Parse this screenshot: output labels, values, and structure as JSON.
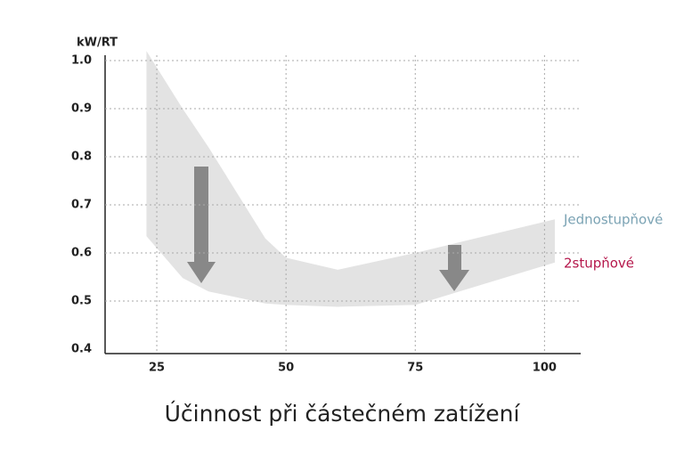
{
  "chart_data": {
    "type": "line",
    "y_label": "kW/RT",
    "x_label": "Účinnost při částečném zatížení",
    "x": [
      23,
      30,
      35,
      46,
      50,
      60,
      75,
      102
    ],
    "series": [
      {
        "name": "Jednostupňové",
        "color": "#7ba3b4",
        "values": [
          1.02,
          0.9,
          0.82,
          0.63,
          0.59,
          0.565,
          0.6,
          0.67
        ]
      },
      {
        "name": "2stupňové",
        "color": "#b5174b",
        "values": [
          0.635,
          0.548,
          0.52,
          0.495,
          0.492,
          0.488,
          0.492,
          0.58
        ]
      }
    ],
    "xlim": [
      15,
      107
    ],
    "ylim": [
      0.4,
      1.05
    ],
    "xticks": [
      25,
      50,
      75,
      100
    ],
    "yticks": [
      0.4,
      0.5,
      0.6,
      0.7,
      0.8,
      0.9,
      {
        "value": 1,
        "label": "1.0"
      }
    ],
    "grid": true
  }
}
